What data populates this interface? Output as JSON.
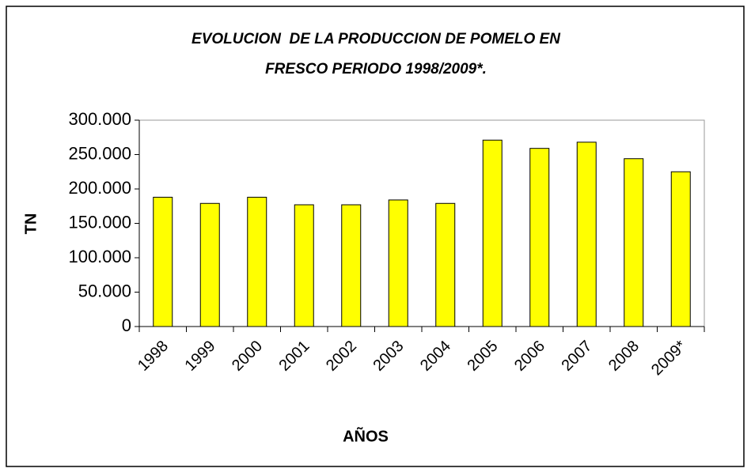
{
  "chart_data": {
    "type": "bar",
    "title": [
      "EVOLUCION  DE LA PRODUCCION DE POMELO EN",
      "FRESCO PERIODO 1998/2009*."
    ],
    "x_label": "AÑOS",
    "y_label": "TN",
    "categories": [
      "1998",
      "1999",
      "2000",
      "2001",
      "2002",
      "2003",
      "2004",
      "2005",
      "2006",
      "2007",
      "2008",
      "2009*"
    ],
    "values": [
      188000,
      179000,
      188000,
      177000,
      177000,
      184000,
      179000,
      271000,
      259000,
      268000,
      244000,
      225000
    ],
    "color": "#ffff00",
    "ylim": [
      0,
      300000
    ],
    "yticks": [
      0,
      {
        "value": 50000,
        "label": "50.000"
      },
      {
        "value": 100000,
        "label": "100.000"
      },
      {
        "value": 150000,
        "label": "150.000"
      },
      {
        "value": 200000,
        "label": "200.000"
      },
      {
        "value": 250000,
        "label": "250.000"
      },
      {
        "value": 300000,
        "label": "300.000"
      }
    ],
    "grid": false
  }
}
